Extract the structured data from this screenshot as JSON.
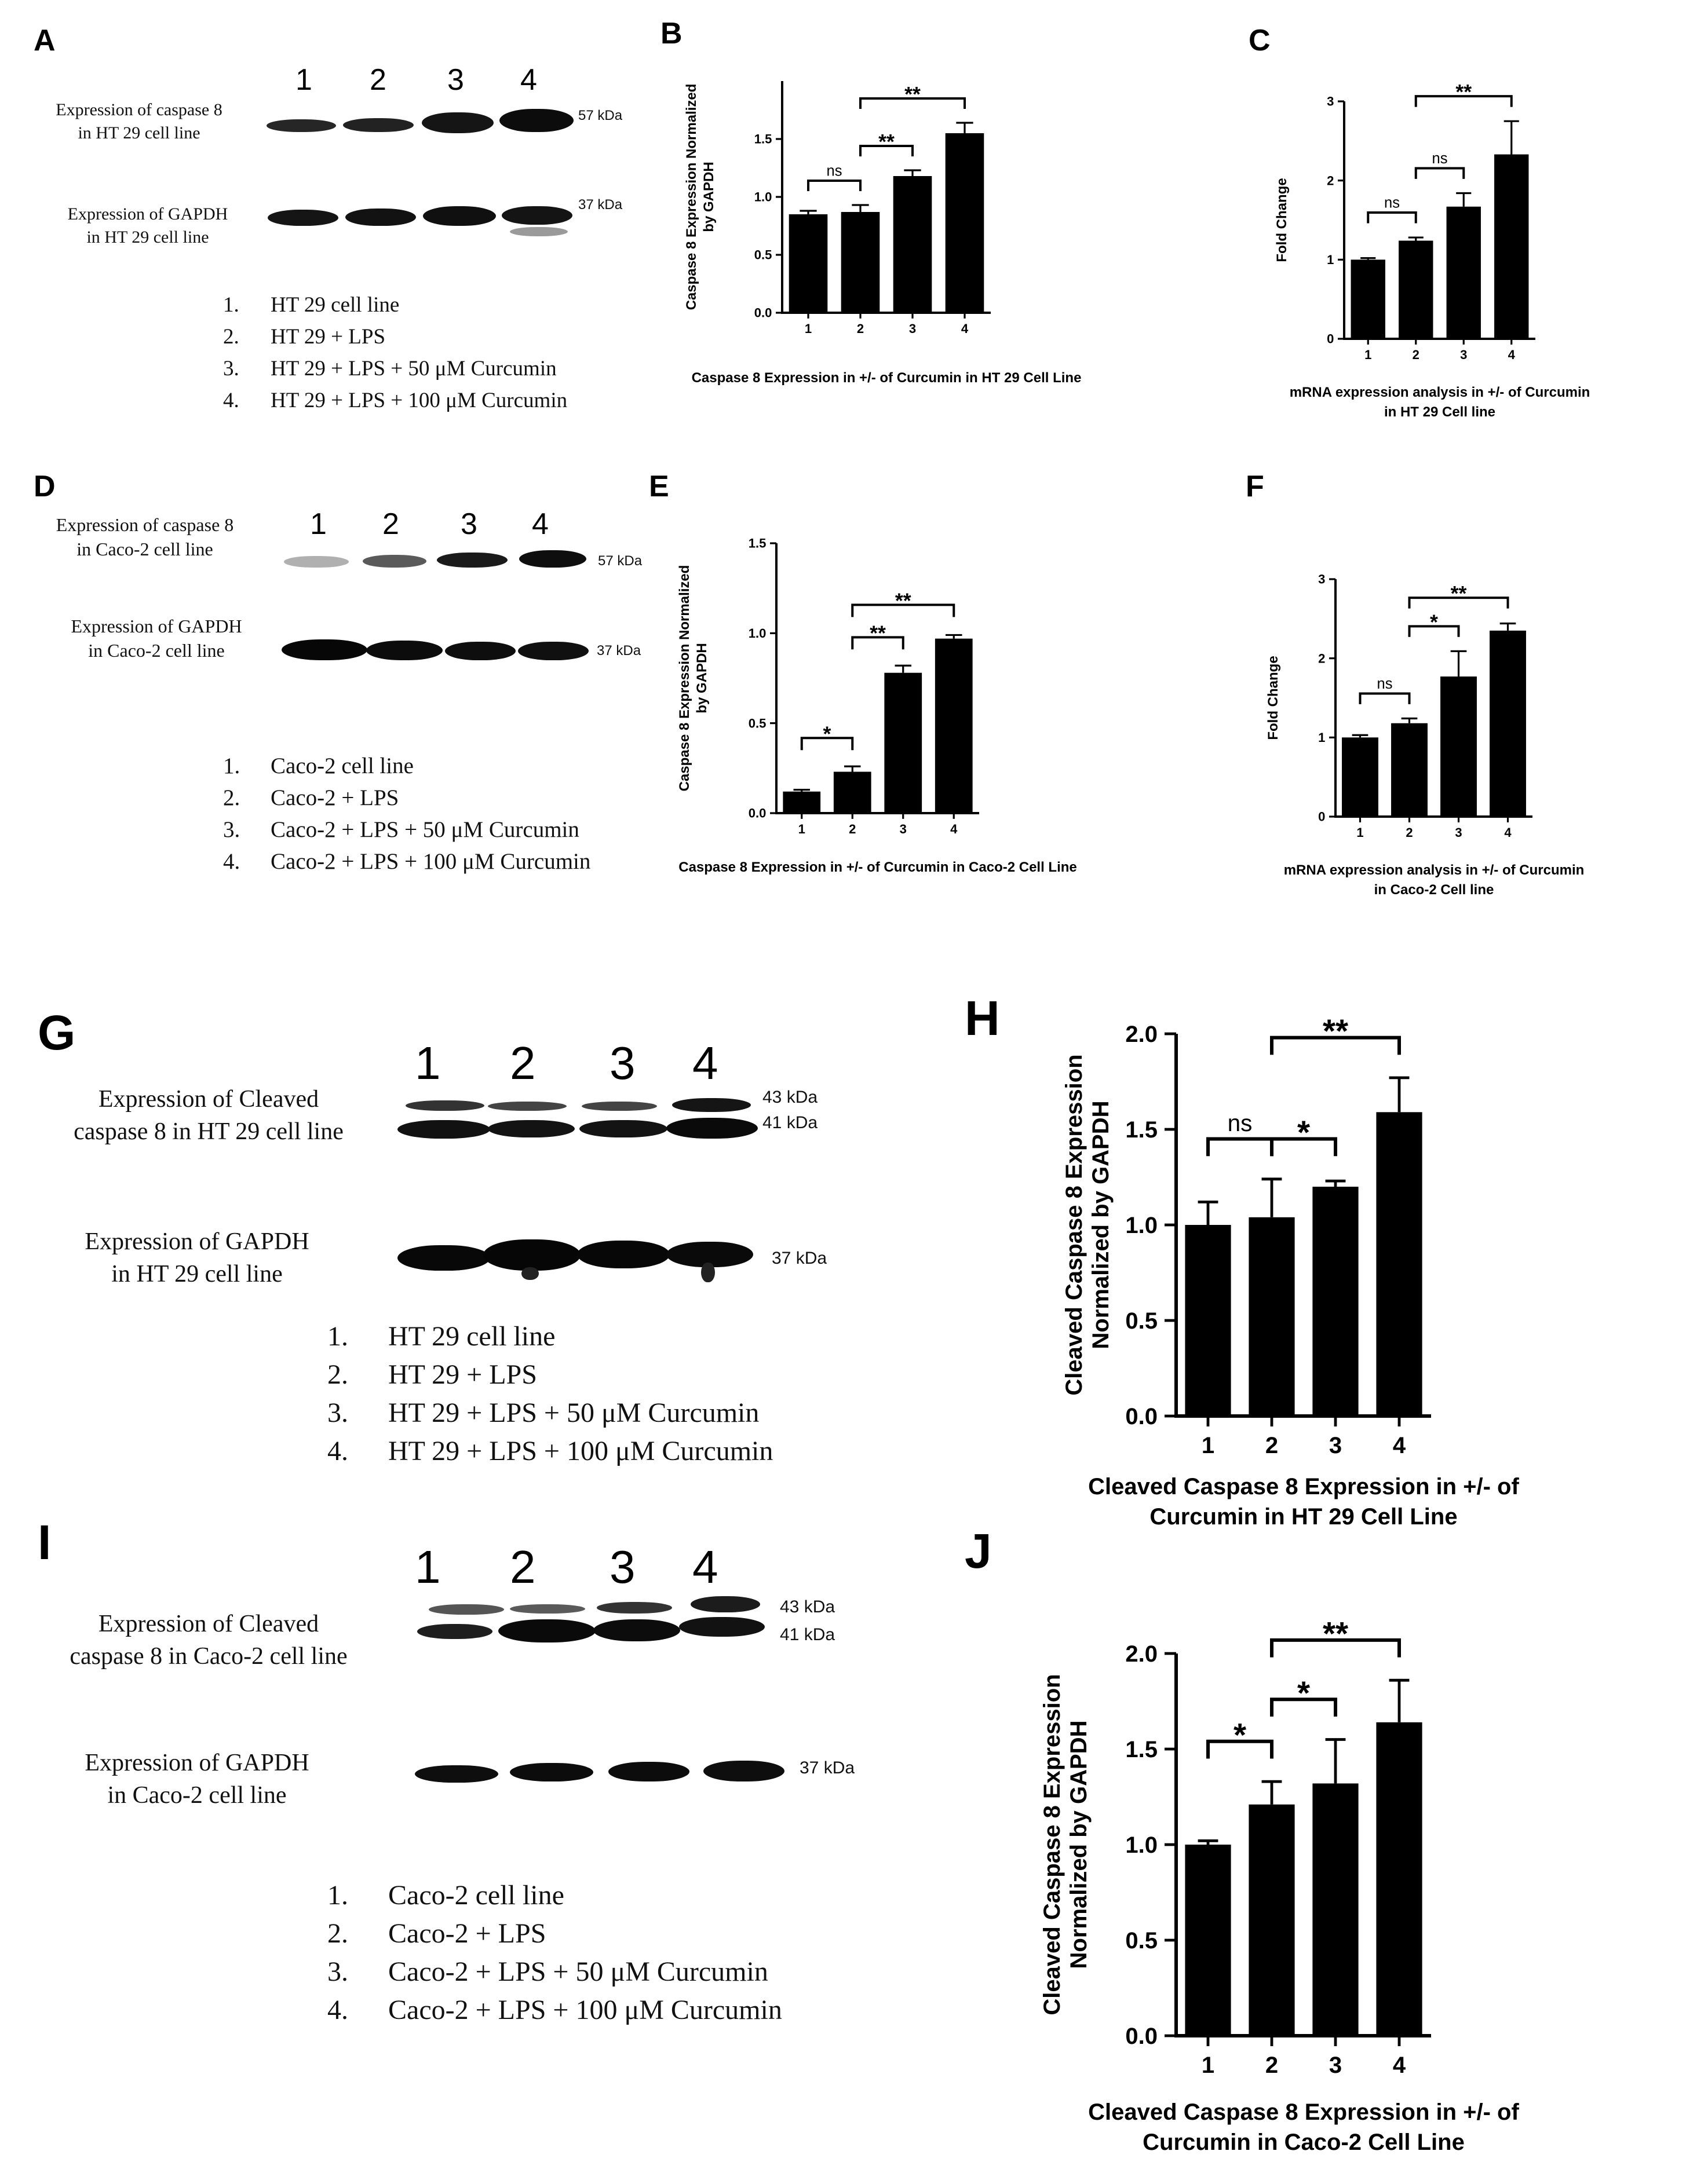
{
  "panels": {
    "A": {
      "letter": "A",
      "lanes": [
        "1",
        "2",
        "3",
        "4"
      ],
      "caspase_label": [
        "Expression of caspase 8",
        "in HT 29 cell line"
      ],
      "gapdh_label": [
        "Expression of GAPDH",
        "in HT 29 cell line"
      ],
      "kda_top": "57 kDa",
      "kda_bottom": "37 kDa",
      "legend": [
        {
          "n": "1.",
          "t": "HT 29 cell line"
        },
        {
          "n": "2.",
          "t": "HT 29 + LPS"
        },
        {
          "n": "3.",
          "t": "HT 29 + LPS + 50 μM Curcumin"
        },
        {
          "n": "4.",
          "t": "HT 29 + LPS + 100 μM Curcumin"
        }
      ]
    },
    "D": {
      "letter": "D",
      "lanes": [
        "1",
        "2",
        "3",
        "4"
      ],
      "caspase_label": [
        "Expression of caspase 8",
        "in Caco-2 cell line"
      ],
      "gapdh_label": [
        "Expression of GAPDH",
        "in Caco-2 cell line"
      ],
      "kda_top": "57 kDa",
      "kda_bottom": "37 kDa",
      "legend": [
        {
          "n": "1.",
          "t": "Caco-2 cell line"
        },
        {
          "n": "2.",
          "t": "Caco-2 + LPS"
        },
        {
          "n": "3.",
          "t": "Caco-2 + LPS + 50 μM Curcumin"
        },
        {
          "n": "4.",
          "t": "Caco-2 + LPS + 100 μM Curcumin"
        }
      ]
    },
    "G": {
      "letter": "G",
      "lanes": [
        "1",
        "2",
        "3",
        "4"
      ],
      "caspase_label": [
        "Expression of Cleaved",
        "caspase 8 in HT 29 cell line"
      ],
      "gapdh_label": [
        "Expression of GAPDH",
        "in HT 29 cell line"
      ],
      "kda_43": "43 kDa",
      "kda_41": "41 kDa",
      "kda_37": "37 kDa",
      "legend": [
        {
          "n": "1.",
          "t": "HT 29 cell line"
        },
        {
          "n": "2.",
          "t": "HT 29 + LPS"
        },
        {
          "n": "3.",
          "t": "HT 29 + LPS + 50 μM Curcumin"
        },
        {
          "n": "4.",
          "t": "HT 29 + LPS + 100 μM Curcumin"
        }
      ]
    },
    "I": {
      "letter": "I",
      "lanes": [
        "1",
        "2",
        "3",
        "4"
      ],
      "caspase_label": [
        "Expression of Cleaved",
        "caspase 8 in Caco-2 cell line"
      ],
      "gapdh_label": [
        "Expression of GAPDH",
        "in Caco-2 cell line"
      ],
      "kda_43": "43 kDa",
      "kda_41": "41 kDa",
      "kda_37": "37 kDa",
      "legend": [
        {
          "n": "1.",
          "t": "Caco-2 cell line"
        },
        {
          "n": "2.",
          "t": "Caco-2 + LPS"
        },
        {
          "n": "3.",
          "t": "Caco-2 + LPS + 50 μM Curcumin"
        },
        {
          "n": "4.",
          "t": "Caco-2 + LPS + 100 μM Curcumin"
        }
      ]
    }
  },
  "chart_data": [
    {
      "panel": "B",
      "type": "bar",
      "categories": [
        "1",
        "2",
        "3",
        "4"
      ],
      "values": [
        0.85,
        0.87,
        1.18,
        1.55
      ],
      "errors": [
        0.03,
        0.06,
        0.05,
        0.09
      ],
      "ylim": [
        0,
        2.0
      ],
      "yticks": [
        "0.0",
        "0.5",
        "1.0",
        "1.5"
      ],
      "ylabel": [
        "Caspase 8 Expression Normalized",
        "by GAPDH"
      ],
      "xlabel": [
        "Caspase 8 Expression in +/- of Curcumin in HT 29 Cell Line"
      ],
      "significance": [
        {
          "from": 0,
          "to": 1,
          "label": "ns"
        },
        {
          "from": 1,
          "to": 2,
          "label": "**"
        },
        {
          "from": 1,
          "to": 3,
          "label": "**"
        }
      ]
    },
    {
      "panel": "C",
      "type": "bar",
      "categories": [
        "1",
        "2",
        "3",
        "4"
      ],
      "values": [
        1.0,
        1.24,
        1.67,
        2.33
      ],
      "errors": [
        0.02,
        0.04,
        0.17,
        0.42
      ],
      "ylim": [
        0,
        3
      ],
      "yticks": [
        "0",
        "1",
        "2",
        "3"
      ],
      "ylabel": [
        "Fold Change"
      ],
      "xlabel": [
        "mRNA expression analysis in +/- of Curcumin",
        "in HT 29 Cell line"
      ],
      "significance": [
        {
          "from": 0,
          "to": 1,
          "label": "ns"
        },
        {
          "from": 1,
          "to": 2,
          "label": "ns"
        },
        {
          "from": 1,
          "to": 3,
          "label": "**"
        }
      ]
    },
    {
      "panel": "E",
      "type": "bar",
      "categories": [
        "1",
        "2",
        "3",
        "4"
      ],
      "values": [
        0.12,
        0.23,
        0.78,
        0.97
      ],
      "errors": [
        0.01,
        0.03,
        0.04,
        0.02
      ],
      "ylim": [
        0,
        1.5
      ],
      "yticks": [
        "0.0",
        "0.5",
        "1.0",
        "1.5"
      ],
      "ylabel": [
        "Caspase 8 Expression Normalized",
        "by GAPDH"
      ],
      "xlabel": [
        "Caspase 8 Expression in +/- of Curcumin in Caco-2 Cell Line"
      ],
      "significance": [
        {
          "from": 0,
          "to": 1,
          "label": "*"
        },
        {
          "from": 1,
          "to": 2,
          "label": "**"
        },
        {
          "from": 1,
          "to": 3,
          "label": "**"
        }
      ]
    },
    {
      "panel": "F",
      "type": "bar",
      "categories": [
        "1",
        "2",
        "3",
        "4"
      ],
      "values": [
        1.0,
        1.18,
        1.77,
        2.35
      ],
      "errors": [
        0.03,
        0.06,
        0.32,
        0.09
      ],
      "ylim": [
        0,
        3
      ],
      "yticks": [
        "0",
        "1",
        "2",
        "3"
      ],
      "ylabel": [
        "Fold Change"
      ],
      "xlabel": [
        "mRNA expression analysis in +/- of Curcumin",
        "in Caco-2 Cell line"
      ],
      "significance": [
        {
          "from": 0,
          "to": 1,
          "label": "ns"
        },
        {
          "from": 1,
          "to": 2,
          "label": "*"
        },
        {
          "from": 1,
          "to": 3,
          "label": "**"
        }
      ]
    },
    {
      "panel": "H",
      "type": "bar",
      "categories": [
        "1",
        "2",
        "3",
        "4"
      ],
      "values": [
        1.0,
        1.04,
        1.2,
        1.59
      ],
      "errors": [
        0.12,
        0.2,
        0.03,
        0.18
      ],
      "ylim": [
        0,
        2.0
      ],
      "yticks": [
        "0.0",
        "0.5",
        "1.0",
        "1.5",
        "2.0"
      ],
      "ylabel": [
        "Cleaved Caspase 8 Expression",
        "Normalized by GAPDH"
      ],
      "xlabel": [
        "Cleaved Caspase 8 Expression in +/- of",
        "Curcumin in HT 29 Cell Line"
      ],
      "significance": [
        {
          "from": 0,
          "to": 1,
          "label": "ns"
        },
        {
          "from": 1,
          "to": 2,
          "label": "*"
        },
        {
          "from": 1,
          "to": 3,
          "label": "**"
        }
      ]
    },
    {
      "panel": "J",
      "type": "bar",
      "categories": [
        "1",
        "2",
        "3",
        "4"
      ],
      "values": [
        1.0,
        1.21,
        1.32,
        1.64
      ],
      "errors": [
        0.02,
        0.12,
        0.23,
        0.22
      ],
      "ylim": [
        0,
        2.0
      ],
      "yticks": [
        "0.0",
        "0.5",
        "1.0",
        "1.5",
        "2.0"
      ],
      "ylabel": [
        "Cleaved Caspase 8 Expression",
        "Normalized by GAPDH"
      ],
      "xlabel": [
        "Cleaved Caspase 8 Expression in +/- of",
        "Curcumin in Caco-2 Cell Line"
      ],
      "significance": [
        {
          "from": 0,
          "to": 1,
          "label": "*"
        },
        {
          "from": 1,
          "to": 2,
          "label": "*"
        },
        {
          "from": 1,
          "to": 3,
          "label": "**"
        }
      ]
    }
  ]
}
